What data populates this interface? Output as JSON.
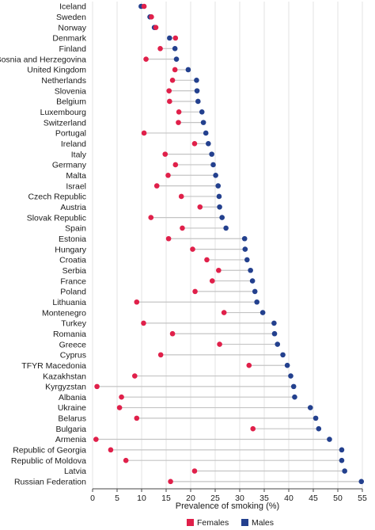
{
  "chart_data": {
    "type": "dumbbell",
    "xlabel": "Prevalence of smoking (%)",
    "xlim": [
      0,
      55
    ],
    "xticks": [
      0,
      5,
      10,
      15,
      20,
      25,
      30,
      35,
      40,
      45,
      50,
      55
    ],
    "grid": "vertical",
    "legend_position": "bottom-center",
    "categories": [
      "Iceland",
      "Sweden",
      "Norway",
      "Denmark",
      "Finland",
      "Bosnia and Herzegovina",
      "United Kingdom",
      "Netherlands",
      "Slovenia",
      "Belgium",
      "Luxembourg",
      "Switzerland",
      "Portugal",
      "Ireland",
      "Italy",
      "Germany",
      "Malta",
      "Israel",
      "Czech Republic",
      "Austria",
      "Slovak Republic",
      "Spain",
      "Estonia",
      "Hungary",
      "Croatia",
      "Serbia",
      "France",
      "Poland",
      "Lithuania",
      "Montenegro",
      "Turkey",
      "Romania",
      "Greece",
      "Cyprus",
      "TFYR Macedonia",
      "Kazakhstan",
      "Kyrgyzstan",
      "Albania",
      "Ukraine",
      "Belarus",
      "Bulgaria",
      "Armenia",
      "Republic of Georgia",
      "Republic of Moldova",
      "Latvia",
      "Russian Federation"
    ],
    "series": [
      {
        "name": "Females",
        "color": "#e0204a",
        "values": [
          10.5,
          12,
          12.9,
          16.9,
          13.8,
          10.9,
          16.8,
          16.3,
          15.6,
          15.7,
          17.6,
          17.5,
          10.5,
          20.8,
          14.8,
          16.9,
          15.4,
          13.1,
          18.1,
          21.9,
          11.9,
          18.3,
          15.5,
          20.4,
          23.3,
          25.7,
          24.4,
          20.9,
          9.0,
          26.8,
          10.4,
          16.3,
          25.9,
          13.9,
          31.9,
          8.6,
          0.9,
          5.9,
          5.5,
          9.0,
          32.7,
          0.7,
          3.7,
          6.8,
          20.8,
          15.9
        ]
      },
      {
        "name": "Males",
        "color": "#23408e",
        "values": [
          9.9,
          11.7,
          12.6,
          15.7,
          16.8,
          17.1,
          19.5,
          21.2,
          21.3,
          21.5,
          22.3,
          22.6,
          23.1,
          23.6,
          24.3,
          24.6,
          25.1,
          25.6,
          25.8,
          25.9,
          26.4,
          27.2,
          31.0,
          31.1,
          31.5,
          32.2,
          32.6,
          33.1,
          33.5,
          34.7,
          37.0,
          37.1,
          37.7,
          38.8,
          39.7,
          40.4,
          41.0,
          41.2,
          44.4,
          45.5,
          46.1,
          48.3,
          50.8,
          50.8,
          51.4,
          54.8
        ]
      }
    ]
  },
  "legend": {
    "females_label": "Females",
    "males_label": "Males"
  },
  "colors": {
    "females": "#e0204a",
    "males": "#23408e",
    "connector": "#c4c4c4",
    "grid": "#e3e3e3",
    "axis": "#444444"
  }
}
